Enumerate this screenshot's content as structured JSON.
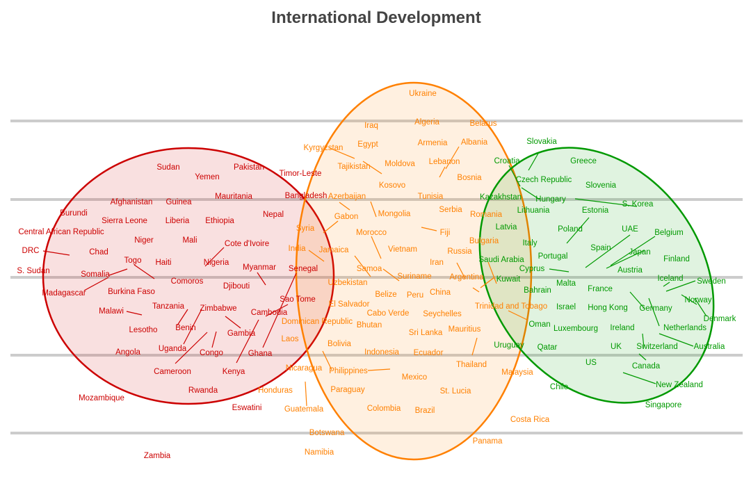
{
  "title": "International Development",
  "colors": {
    "red": "#cc0000",
    "orange": "#ff8000",
    "green": "#009900",
    "band": "#cccccc",
    "title": "#444444"
  },
  "groups": [
    {
      "color": "red",
      "items": [
        "Sudan",
        "Pakistan",
        "Yemen",
        "Afghanistan",
        "Guinea",
        "Mauritania",
        "Burundi",
        "Sierra Leone",
        "Liberia",
        "Ethiopia",
        "Nepal",
        "Central African Republic",
        "Niger",
        "Mali",
        "Cote d'Ivoire",
        "DRC",
        "Chad",
        "Togo",
        "Haiti",
        "Nigeria",
        "Myanmar",
        "S. Sudan",
        "Somalia",
        "Comoros",
        "Djibouti",
        "Madagascar",
        "Burkina Faso",
        "Malawi",
        "Tanzania",
        "Zimbabwe",
        "Cambodia",
        "Benin",
        "Lesotho",
        "Gambia",
        "Angola",
        "Uganda",
        "Congo",
        "Ghana",
        "Cameroon",
        "Kenya",
        "Rwanda",
        "Mozambique",
        "Eswatini",
        "Zambia",
        "Timor-Leste",
        "Bangladesh",
        "Senegal",
        "Sao Tome"
      ]
    },
    {
      "color": "orange",
      "items": [
        "Ukraine",
        "Algeria",
        "Iraq",
        "Belarus",
        "Armenia",
        "Albania",
        "Kyrgyzstan",
        "Egypt",
        "Tajikistan",
        "Moldova",
        "Lebanon",
        "Bosnia",
        "Kosovo",
        "Azerbaijan",
        "Tunisia",
        "Serbia",
        "Gabon",
        "Mongolia",
        "Romania",
        "Syria",
        "Morocco",
        "Fiji",
        "Bulgaria",
        "India",
        "Jamaica",
        "Vietnam",
        "Russia",
        "Iran",
        "Samoa",
        "Suriname",
        "Argentina",
        "Uzbekistan",
        "Belize",
        "Peru",
        "China",
        "El Salvador",
        "Cabo Verde",
        "Seychelles",
        "Trinidad and Tobago",
        "Dominican Republic",
        "Bhutan",
        "Sri Lanka",
        "Mauritius",
        "Laos",
        "Bolivia",
        "Indonesia",
        "Ecuador",
        "Thailand",
        "Nicaragua",
        "Philippines",
        "Mexico",
        "Malaysia",
        "Honduras",
        "Paraguay",
        "St. Lucia",
        "Guatemala",
        "Colombia",
        "Brazil",
        "Costa Rica",
        "Botswana",
        "Panama",
        "Namibia"
      ]
    },
    {
      "color": "green",
      "items": [
        "Slovakia",
        "Croatia",
        "Greece",
        "Czech Republic",
        "Slovenia",
        "Hungary",
        "S. Korea",
        "Lithuania",
        "Estonia",
        "Latvia",
        "Poland",
        "UAE",
        "Belgium",
        "Italy",
        "Spain",
        "Japan",
        "Portugal",
        "Finland",
        "Cyprus",
        "Austria",
        "Malta",
        "France",
        "Iceland",
        "Sweden",
        "Norway",
        "Israel",
        "Hong Kong",
        "Germany",
        "Denmark",
        "Luxembourg",
        "Ireland",
        "Netherlands",
        "UK",
        "Switzerland",
        "Australia",
        "US",
        "Canada",
        "New Zealand",
        "Singapore",
        "Kazakhstan",
        "Saudi Arabia",
        "Kuwait",
        "Bahrain",
        "Oman",
        "Uruguay",
        "Qatar",
        "Chile"
      ]
    }
  ]
}
